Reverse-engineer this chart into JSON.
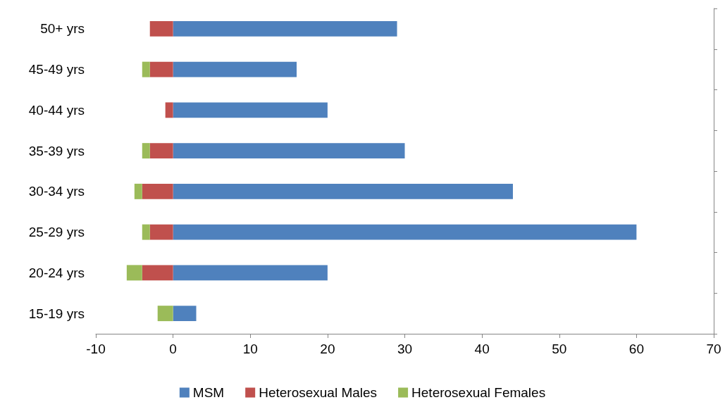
{
  "chart_data": {
    "type": "bar",
    "orientation": "horizontal",
    "stacked": true,
    "categories": [
      "50+ yrs",
      "45-49 yrs",
      "40-44 yrs",
      "35-39 yrs",
      "30-34 yrs",
      "25-29 yrs",
      "20-24 yrs",
      "15-19 yrs"
    ],
    "series": [
      {
        "name": "MSM",
        "color": "#4f81bd",
        "values": [
          29,
          16,
          20,
          30,
          44,
          60,
          20,
          3
        ]
      },
      {
        "name": "Heterosexual Males",
        "color": "#c0504d",
        "values": [
          -3,
          -3,
          -1,
          -3,
          -4,
          -3,
          -4,
          0
        ]
      },
      {
        "name": "Heterosexual Females",
        "color": "#9bbb59",
        "values": [
          0,
          -1,
          0,
          -1,
          -1,
          -1,
          -2,
          -2
        ]
      }
    ],
    "xlim": [
      -10,
      70
    ],
    "xticks": [
      -10,
      0,
      10,
      20,
      30,
      40,
      50,
      60,
      70
    ],
    "grid": false,
    "legend": "bottom"
  }
}
